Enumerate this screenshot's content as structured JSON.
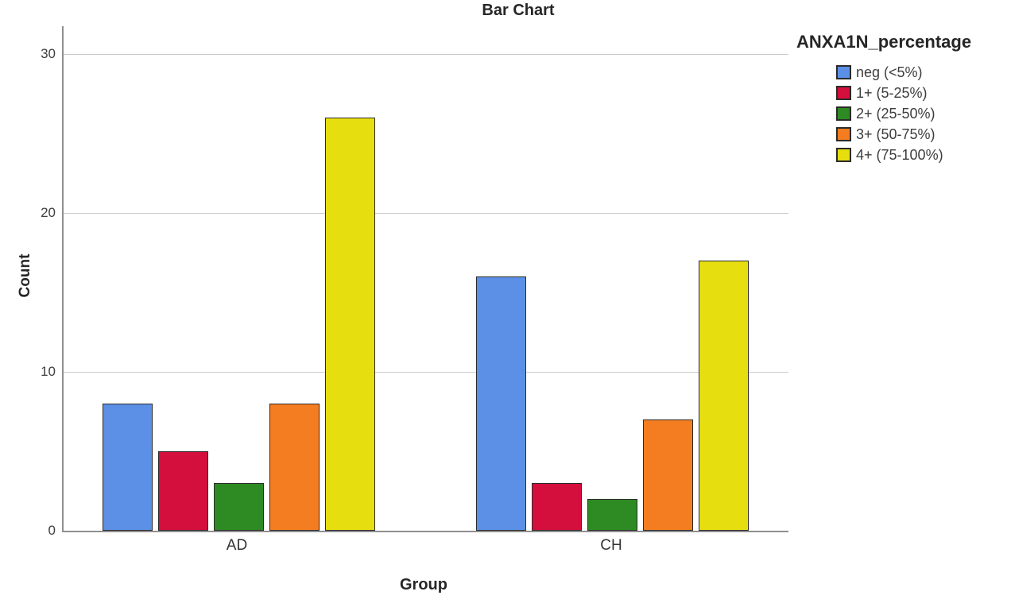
{
  "title": "Bar Chart",
  "axes": {
    "y_label": "Count",
    "x_label": "Group",
    "y_ticks": [
      "30",
      "20",
      "10",
      "0"
    ]
  },
  "legend": {
    "title": "ANXA1N_percentage",
    "items": [
      {
        "label": "neg (<5%)",
        "color": "#5B90E6"
      },
      {
        "label": "1+ (5-25%)",
        "color": "#D40F3D"
      },
      {
        "label": "2+ (25-50%)",
        "color": "#2E8B23"
      },
      {
        "label": "3+ (50-75%)",
        "color": "#F47D21"
      },
      {
        "label": "4+ (75-100%)",
        "color": "#E7DE10"
      }
    ]
  },
  "chart_data": {
    "type": "bar",
    "title": "Bar Chart",
    "xlabel": "Group",
    "ylabel": "Count",
    "categories": [
      "AD",
      "CH"
    ],
    "series": [
      {
        "name": "neg (<5%)",
        "color": "#5B90E6",
        "values": [
          8,
          16
        ]
      },
      {
        "name": "1+ (5-25%)",
        "color": "#D40F3D",
        "values": [
          5,
          3
        ]
      },
      {
        "name": "2+ (25-50%)",
        "color": "#2E8B23",
        "values": [
          3,
          2
        ]
      },
      {
        "name": "3+ (50-75%)",
        "color": "#F47D21",
        "values": [
          8,
          7
        ]
      },
      {
        "name": "4+ (75-100%)",
        "color": "#E7DE10",
        "values": [
          26,
          17
        ]
      }
    ],
    "ylim": [
      0,
      31.75
    ],
    "yticks": [
      0,
      10,
      20,
      30
    ],
    "grid": true,
    "legend_title": "ANXA1N_percentage",
    "legend_position": "right"
  },
  "colors": {
    "gridline": "#cacaca",
    "axis_line": "#8f8f8f",
    "bar_border": "#2b2b2b"
  }
}
